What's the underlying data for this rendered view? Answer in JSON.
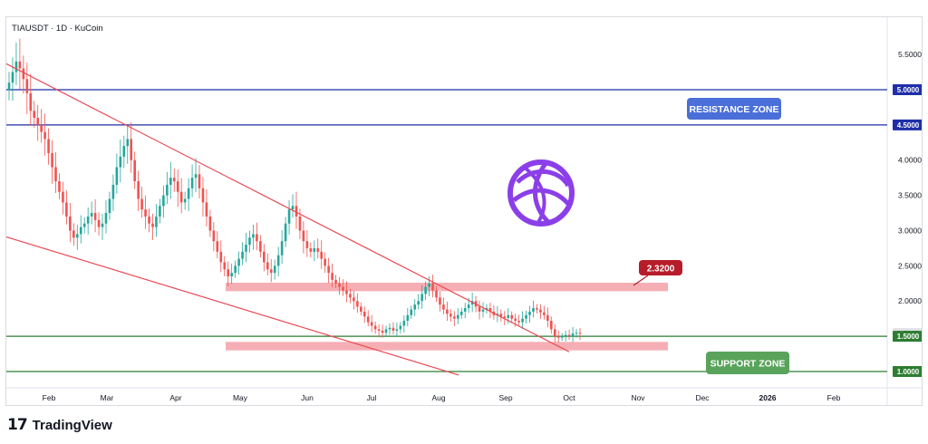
{
  "chart_data": {
    "type": "candlestick",
    "title": "TIAUSDT · 1D · KuCoin",
    "price_axis": {
      "ticks": [
        "5.5000",
        "4.0000",
        "3.5000",
        "3.0000",
        "2.5000",
        "2.0000"
      ],
      "highlighted_labels": [
        {
          "value": "5.0000",
          "color": "#1e2fa8",
          "text_color": "#ffffff"
        },
        {
          "value": "4.5000",
          "color": "#1e2fa8",
          "text_color": "#ffffff"
        },
        {
          "value": "1.5385",
          "color": "#dfe1e6",
          "text_color": "#131722"
        },
        {
          "value": "1.5000",
          "color": "#2e7d32",
          "text_color": "#ffffff"
        },
        {
          "value": "1.0000",
          "color": "#2e7d32",
          "text_color": "#ffffff"
        }
      ]
    },
    "time_axis": {
      "ticks": [
        "Feb",
        "Mar",
        "Apr",
        "May",
        "Jun",
        "Jul",
        "Aug",
        "Sep",
        "Oct",
        "Nov",
        "Dec",
        "2026",
        "Feb"
      ]
    },
    "horizontal_lines": [
      {
        "price": 5.0,
        "color": "#1e2fa8"
      },
      {
        "price": 4.5,
        "color": "#1e2fa8"
      },
      {
        "price": 1.5,
        "color": "#2e7d32"
      },
      {
        "price": 1.0,
        "color": "#2e7d32"
      }
    ],
    "zones": [
      {
        "price_top": 2.26,
        "price_bottom": 2.14,
        "x_start": "May 1",
        "x_end": "Nov 20",
        "color": "#f4a6ac"
      },
      {
        "price_top": 1.42,
        "price_bottom": 1.3,
        "x_start": "May 1",
        "x_end": "Nov 20",
        "color": "#f4a6ac"
      }
    ],
    "trendlines": [
      {
        "from": [
          "Jan 1",
          5.55
        ],
        "to": [
          "Oct 1",
          1.28
        ],
        "color": "#e84a55"
      },
      {
        "from": [
          "Jan 1",
          3.02
        ],
        "to": [
          "Aug 10",
          0.95
        ],
        "color": "#e84a55"
      }
    ],
    "annotations": [
      {
        "text": "RESISTANCE ZONE",
        "color": "#4a6fd8",
        "text_color": "#ffffff"
      },
      {
        "text": "SUPPORT ZONE",
        "color": "#59a35b",
        "text_color": "#ffffff"
      },
      {
        "text": "2.3200",
        "color": "#b71c2a",
        "text_color": "#ffffff"
      }
    ],
    "colors": {
      "up": "#26a69a",
      "down": "#ef5350",
      "logo": "#8b3fe8"
    },
    "candles_close": [
      5.1,
      5.25,
      5.4,
      5.3,
      5.15,
      4.95,
      4.7,
      4.6,
      4.5,
      4.4,
      4.3,
      4.1,
      3.9,
      3.7,
      3.55,
      3.4,
      3.2,
      3.0,
      2.9,
      2.95,
      3.05,
      3.1,
      3.2,
      3.25,
      3.15,
      3.05,
      3.1,
      3.25,
      3.45,
      3.65,
      3.9,
      4.05,
      4.2,
      4.3,
      4.0,
      3.7,
      3.45,
      3.3,
      3.2,
      3.1,
      3.05,
      3.2,
      3.35,
      3.5,
      3.65,
      3.75,
      3.7,
      3.55,
      3.4,
      3.45,
      3.6,
      3.75,
      3.8,
      3.6,
      3.4,
      3.2,
      3.0,
      2.85,
      2.7,
      2.55,
      2.45,
      2.35,
      2.4,
      2.5,
      2.6,
      2.7,
      2.8,
      2.9,
      2.95,
      2.85,
      2.7,
      2.55,
      2.45,
      2.4,
      2.5,
      2.65,
      2.85,
      3.1,
      3.3,
      3.35,
      3.2,
      3.0,
      2.85,
      2.75,
      2.7,
      2.75,
      2.7,
      2.6,
      2.5,
      2.4,
      2.3,
      2.25,
      2.2,
      2.15,
      2.1,
      2.05,
      2.0,
      1.92,
      1.85,
      1.78,
      1.7,
      1.65,
      1.6,
      1.58,
      1.55,
      1.6,
      1.62,
      1.58,
      1.6,
      1.65,
      1.72,
      1.8,
      1.88,
      1.95,
      2.0,
      2.1,
      2.2,
      2.25,
      2.15,
      2.05,
      1.95,
      1.88,
      1.82,
      1.78,
      1.75,
      1.8,
      1.85,
      1.9,
      1.95,
      2.0,
      1.92,
      1.85,
      1.88,
      1.9,
      1.85,
      1.8,
      1.82,
      1.78,
      1.76,
      1.8,
      1.75,
      1.72,
      1.7,
      1.75,
      1.8,
      1.85,
      1.9,
      1.88,
      1.84,
      1.8,
      1.72,
      1.6,
      1.5,
      1.48,
      1.5,
      1.52,
      1.5,
      1.54,
      1.55,
      1.5385
    ],
    "date_range": [
      "Jan 1",
      "Oct 10"
    ],
    "ylim": [
      0.8,
      5.9
    ]
  },
  "footer": {
    "brand_mark": "17",
    "brand_name": "TradingView"
  }
}
